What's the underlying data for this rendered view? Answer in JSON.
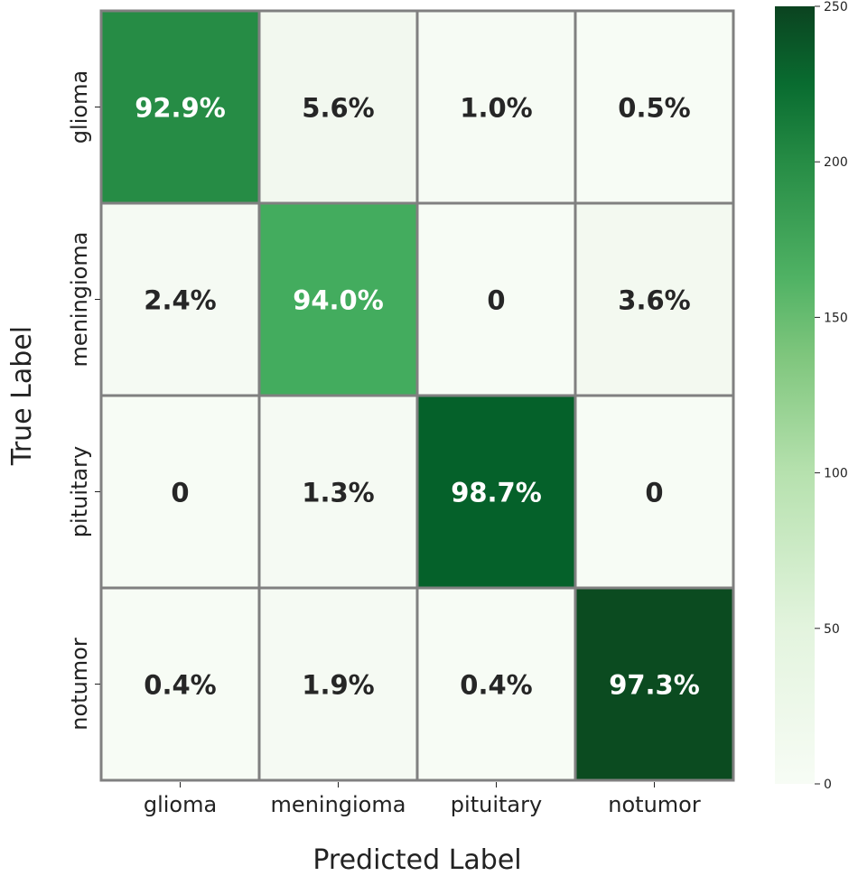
{
  "chart_data": {
    "type": "heatmap",
    "title": "",
    "xlabel": "Predicted Label",
    "ylabel": "True Label",
    "x_categories": [
      "glioma",
      "meningioma",
      "pituitary",
      "notumor"
    ],
    "y_categories": [
      "glioma",
      "meningioma",
      "pituitary",
      "notumor"
    ],
    "annotations": [
      [
        "92.9%",
        "5.6%",
        "1.0%",
        "0.5%"
      ],
      [
        "2.4%",
        "94.0%",
        "0",
        "3.6%"
      ],
      [
        "0",
        "1.3%",
        "98.7%",
        "0"
      ],
      [
        "0.4%",
        "1.9%",
        "0.4%",
        "97.3%"
      ]
    ],
    "cell_colors": [
      [
        "#268c45",
        "#f2f8ef",
        "#f6fbf4",
        "#f7fcf5"
      ],
      [
        "#f5faf3",
        "#43ac5e",
        "#f7fcf5",
        "#f3f9f0"
      ],
      [
        "#f7fcf5",
        "#f5faf3",
        "#05612a",
        "#f7fcf5"
      ],
      [
        "#f7fcf5",
        "#f5faf3",
        "#f7fcf5",
        "#0b4b20"
      ]
    ],
    "text_colors": [
      [
        "#ffffff",
        "#262626",
        "#262626",
        "#262626"
      ],
      [
        "#262626",
        "#ffffff",
        "#262626",
        "#262626"
      ],
      [
        "#262626",
        "#262626",
        "#ffffff",
        "#262626"
      ],
      [
        "#262626",
        "#262626",
        "#262626",
        "#ffffff"
      ]
    ],
    "colorbar": {
      "range": [
        0,
        250
      ],
      "ticks": [
        "0",
        "50",
        "100",
        "150",
        "200",
        "250"
      ],
      "colormap": "Greens"
    },
    "grid_line_color": "#808080"
  }
}
